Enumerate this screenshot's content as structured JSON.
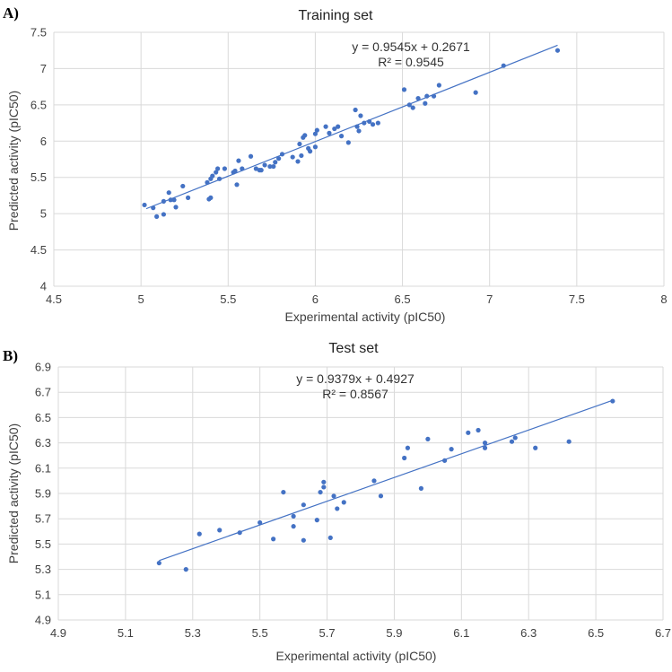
{
  "chart_data": [
    {
      "panel_label": "A)",
      "type": "scatter",
      "title": "Training set",
      "xlabel": "Experimental activity (pIC50)",
      "ylabel": "Predicted activity (pIC50)",
      "xlim": [
        4.5,
        8
      ],
      "ylim": [
        4,
        7.5
      ],
      "xticks": [
        "4.5",
        "5",
        "5.5",
        "6",
        "6.5",
        "7",
        "7.5",
        "8"
      ],
      "yticks": [
        "4",
        "4.5",
        "5",
        "5.5",
        "6",
        "6.5",
        "7",
        "7.5"
      ],
      "grid": true,
      "marker_color": "#4472c4",
      "trendline": {
        "slope": 0.9545,
        "intercept": 0.2671,
        "x_range": [
          5.03,
          7.39
        ]
      },
      "equation": "y = 0.9545x + 0.2671",
      "r2_label": "R² = 0.9545",
      "points": [
        [
          5.02,
          5.12
        ],
        [
          5.07,
          5.08
        ],
        [
          5.09,
          4.96
        ],
        [
          5.13,
          4.99
        ],
        [
          5.13,
          5.17
        ],
        [
          5.16,
          5.29
        ],
        [
          5.17,
          5.19
        ],
        [
          5.19,
          5.19
        ],
        [
          5.2,
          5.09
        ],
        [
          5.24,
          5.38
        ],
        [
          5.27,
          5.22
        ],
        [
          5.38,
          5.43
        ],
        [
          5.39,
          5.2
        ],
        [
          5.4,
          5.22
        ],
        [
          5.4,
          5.48
        ],
        [
          5.41,
          5.52
        ],
        [
          5.43,
          5.57
        ],
        [
          5.44,
          5.62
        ],
        [
          5.45,
          5.48
        ],
        [
          5.48,
          5.62
        ],
        [
          5.53,
          5.57
        ],
        [
          5.54,
          5.59
        ],
        [
          5.55,
          5.4
        ],
        [
          5.56,
          5.73
        ],
        [
          5.58,
          5.62
        ],
        [
          5.63,
          5.79
        ],
        [
          5.66,
          5.62
        ],
        [
          5.68,
          5.6
        ],
        [
          5.69,
          5.6
        ],
        [
          5.71,
          5.67
        ],
        [
          5.74,
          5.65
        ],
        [
          5.76,
          5.65
        ],
        [
          5.77,
          5.71
        ],
        [
          5.79,
          5.76
        ],
        [
          5.81,
          5.82
        ],
        [
          5.87,
          5.78
        ],
        [
          5.9,
          5.72
        ],
        [
          5.91,
          5.96
        ],
        [
          5.92,
          5.8
        ],
        [
          5.93,
          6.05
        ],
        [
          5.94,
          6.08
        ],
        [
          5.96,
          5.9
        ],
        [
          5.97,
          5.86
        ],
        [
          6.0,
          6.1
        ],
        [
          6.0,
          5.92
        ],
        [
          6.01,
          6.15
        ],
        [
          6.06,
          6.2
        ],
        [
          6.08,
          6.11
        ],
        [
          6.11,
          6.17
        ],
        [
          6.13,
          6.2
        ],
        [
          6.15,
          6.07
        ],
        [
          6.19,
          5.98
        ],
        [
          6.23,
          6.43
        ],
        [
          6.24,
          6.2
        ],
        [
          6.25,
          6.14
        ],
        [
          6.26,
          6.35
        ],
        [
          6.28,
          6.25
        ],
        [
          6.31,
          6.27
        ],
        [
          6.33,
          6.23
        ],
        [
          6.36,
          6.25
        ],
        [
          6.51,
          6.71
        ],
        [
          6.54,
          6.5
        ],
        [
          6.56,
          6.46
        ],
        [
          6.59,
          6.59
        ],
        [
          6.63,
          6.52
        ],
        [
          6.64,
          6.62
        ],
        [
          6.68,
          6.62
        ],
        [
          6.71,
          6.77
        ],
        [
          6.92,
          6.67
        ],
        [
          7.08,
          7.04
        ],
        [
          7.39,
          7.25
        ]
      ]
    },
    {
      "panel_label": "B)",
      "type": "scatter",
      "title": "Test set",
      "xlabel": "Experimental activity (pIC50)",
      "ylabel": "Predicted activity (pIC50)",
      "xlim": [
        4.9,
        6.7
      ],
      "ylim": [
        4.9,
        6.9
      ],
      "xticks": [
        "4.9",
        "5.1",
        "5.3",
        "5.5",
        "5.7",
        "5.9",
        "6.1",
        "6.3",
        "6.5",
        "6.7"
      ],
      "yticks": [
        "4.9",
        "5.1",
        "5.3",
        "5.5",
        "5.7",
        "5.9",
        "6.1",
        "6.3",
        "6.5",
        "6.7",
        "6.9"
      ],
      "grid": true,
      "marker_color": "#4472c4",
      "trendline": {
        "slope": 0.9379,
        "intercept": 0.4927,
        "x_range": [
          5.2,
          6.55
        ]
      },
      "equation": "y = 0.9379x + 0.4927",
      "r2_label": "R² = 0.8567",
      "points": [
        [
          5.2,
          5.35
        ],
        [
          5.28,
          5.3
        ],
        [
          5.32,
          5.58
        ],
        [
          5.38,
          5.61
        ],
        [
          5.44,
          5.59
        ],
        [
          5.5,
          5.67
        ],
        [
          5.54,
          5.54
        ],
        [
          5.57,
          5.91
        ],
        [
          5.6,
          5.64
        ],
        [
          5.6,
          5.72
        ],
        [
          5.63,
          5.81
        ],
        [
          5.63,
          5.53
        ],
        [
          5.67,
          5.69
        ],
        [
          5.68,
          5.91
        ],
        [
          5.69,
          5.95
        ],
        [
          5.69,
          5.99
        ],
        [
          5.71,
          5.55
        ],
        [
          5.72,
          5.88
        ],
        [
          5.73,
          5.78
        ],
        [
          5.75,
          5.83
        ],
        [
          5.84,
          6.0
        ],
        [
          5.86,
          5.88
        ],
        [
          5.93,
          6.18
        ],
        [
          5.94,
          6.26
        ],
        [
          5.98,
          5.94
        ],
        [
          6.0,
          6.33
        ],
        [
          6.05,
          6.16
        ],
        [
          6.07,
          6.25
        ],
        [
          6.12,
          6.38
        ],
        [
          6.15,
          6.4
        ],
        [
          6.17,
          6.3
        ],
        [
          6.17,
          6.26
        ],
        [
          6.25,
          6.31
        ],
        [
          6.26,
          6.34
        ],
        [
          6.32,
          6.26
        ],
        [
          6.42,
          6.31
        ],
        [
          6.55,
          6.63
        ]
      ]
    }
  ]
}
